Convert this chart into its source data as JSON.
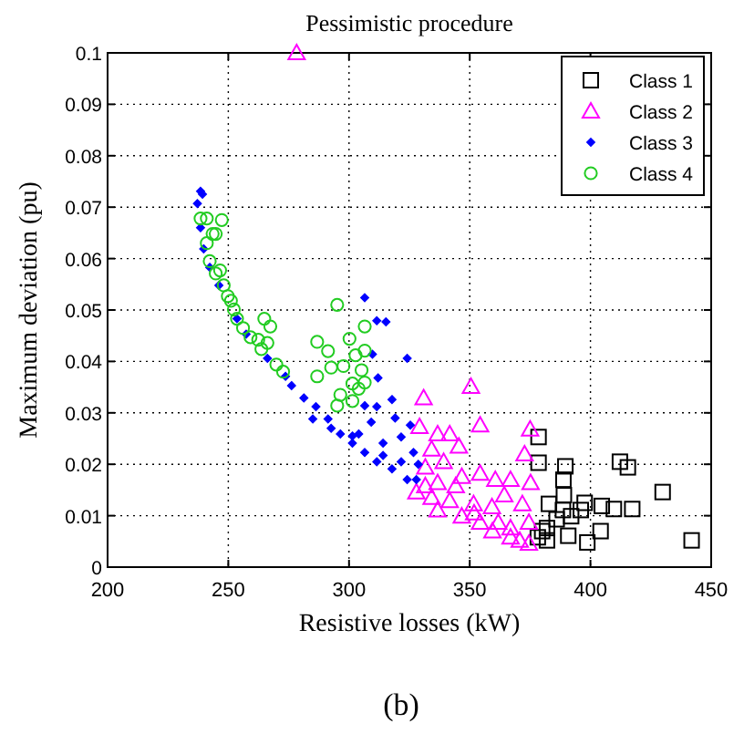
{
  "chart_data": {
    "type": "scatter",
    "title": "Pessimistic procedure",
    "xlabel": "Resistive losses (kW)",
    "ylabel": "Maximum deviation (pu)",
    "annotations": [
      "(b)"
    ],
    "xlim": [
      200,
      450
    ],
    "xticks": [
      200,
      250,
      300,
      350,
      400,
      450
    ],
    "ylim": [
      0,
      0.1
    ],
    "yticks": [
      0,
      0.01,
      0.02,
      0.03,
      0.04,
      0.05,
      0.06,
      0.07,
      0.08,
      0.09,
      0.1
    ],
    "grid": true,
    "legend": "top right",
    "series": [
      {
        "name": "Class 1",
        "color": "#000000",
        "marker": "square",
        "x": [
          378.5,
          378.5,
          389.6,
          388.8,
          389,
          382.8,
          397.6,
          404.7,
          412.2,
          415.5,
          409.7,
          417.3,
          429.9,
          441.9,
          404.2,
          398.7,
          390.8,
          392,
          386,
          382,
          378.2,
          382,
          396,
          388.6,
          380
        ],
        "values": [
          0.0253,
          0.0203,
          0.0196,
          0.017,
          0.014,
          0.0123,
          0.0125,
          0.0119,
          0.0205,
          0.0194,
          0.0113,
          0.0113,
          0.0146,
          0.0052,
          0.007,
          0.0048,
          0.0061,
          0.0099,
          0.0093,
          0.0076,
          0.0058,
          0.0052,
          0.0111,
          0.0111,
          0.007
        ]
      },
      {
        "name": "Class 2",
        "color": "#ff00ff",
        "marker": "triangle",
        "x": [
          278.3,
          330.9,
          350.5,
          354.3,
          329.2,
          375,
          372.7,
          375.2,
          336.7,
          341.7,
          345.5,
          334.2,
          346.7,
          354.3,
          360.6,
          366.9,
          331.6,
          336.7,
          327.9,
          334.2,
          341.7,
          336.7,
          351.6,
          359.2,
          371.8,
          346.7,
          354.3,
          361.8,
          366.9,
          374.5,
          359.4,
          351.8,
          339.2,
          344.2,
          364.3,
          370.7,
          366.9,
          374.5,
          331.6
        ],
        "values": [
          0.1,
          0.0329,
          0.0351,
          0.0276,
          0.0273,
          0.0268,
          0.022,
          0.0164,
          0.0259,
          0.0259,
          0.0235,
          0.0229,
          0.0176,
          0.0182,
          0.017,
          0.017,
          0.0194,
          0.0164,
          0.0146,
          0.0135,
          0.0129,
          0.0111,
          0.0123,
          0.0117,
          0.0123,
          0.0099,
          0.0087,
          0.0087,
          0.0076,
          0.0087,
          0.007,
          0.0105,
          0.0205,
          0.0158,
          0.014,
          0.0052,
          0.0058,
          0.0046,
          0.0158
        ]
      },
      {
        "name": "Class 3",
        "color": "#0000ff",
        "marker": "diamond",
        "x": [
          238.5,
          237.2,
          239.3,
          238.5,
          239.8,
          242.3,
          246.1,
          253.6,
          257.4,
          266.2,
          276.2,
          281.3,
          286.3,
          291.3,
          296.4,
          301.4,
          306.5,
          311.5,
          317.8,
          324.1,
          306.5,
          311.5,
          315.3,
          309.7,
          324.1,
          312,
          317.8,
          319.1,
          311.5,
          306.5,
          301.4,
          304,
          314.1,
          321.6,
          314.1,
          326.7,
          325.4,
          321.6,
          292.6,
          285,
          273.7,
          327.9,
          328.7,
          309.2
        ],
        "values": [
          0.0731,
          0.0707,
          0.0725,
          0.066,
          0.0619,
          0.0583,
          0.0548,
          0.0483,
          0.0453,
          0.0406,
          0.0353,
          0.0329,
          0.0312,
          0.0288,
          0.0259,
          0.0241,
          0.0223,
          0.0205,
          0.0191,
          0.017,
          0.0524,
          0.0479,
          0.0477,
          0.0414,
          0.0406,
          0.0368,
          0.0326,
          0.029,
          0.0312,
          0.0314,
          0.0255,
          0.0259,
          0.0241,
          0.0253,
          0.0217,
          0.0223,
          0.0276,
          0.0205,
          0.027,
          0.0288,
          0.0371,
          0.017,
          0.02,
          0.0282
        ]
      },
      {
        "name": "Class 4",
        "color": "#22cc22",
        "marker": "circle",
        "x": [
          238.5,
          241.1,
          247.3,
          243.5,
          241.1,
          242.3,
          244.8,
          246.6,
          248.1,
          249.8,
          251.1,
          252.3,
          253.6,
          256.1,
          259.2,
          262.4,
          264.9,
          267.4,
          263.7,
          266.2,
          269.9,
          272.7,
          295.1,
          286.8,
          291.3,
          286.8,
          292.6,
          297.7,
          300.2,
          306.5,
          306.5,
          302.7,
          301.4,
          304,
          306.5,
          296.4,
          301.4,
          295.1,
          305.2,
          244.8
        ],
        "values": [
          0.0678,
          0.0678,
          0.0675,
          0.0648,
          0.063,
          0.0595,
          0.0571,
          0.0577,
          0.0548,
          0.0527,
          0.0518,
          0.0501,
          0.0483,
          0.0465,
          0.0447,
          0.0442,
          0.0483,
          0.0468,
          0.0424,
          0.0436,
          0.0394,
          0.038,
          0.051,
          0.0438,
          0.042,
          0.0371,
          0.0388,
          0.0391,
          0.0444,
          0.0421,
          0.0468,
          0.0412,
          0.0357,
          0.0347,
          0.0359,
          0.0335,
          0.0323,
          0.0314,
          0.0383,
          0.0648
        ]
      }
    ]
  }
}
